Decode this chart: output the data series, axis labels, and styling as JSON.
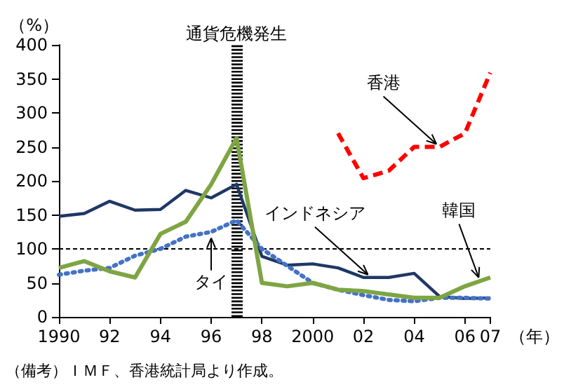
{
  "chart_data": {
    "type": "line",
    "xlabel": "（年）",
    "ylabel": "（%）",
    "x": [
      1990,
      1991,
      1992,
      1993,
      1994,
      1995,
      1996,
      1997,
      1998,
      1999,
      2000,
      2001,
      2002,
      2003,
      2004,
      2005,
      2006,
      2007
    ],
    "xlim": [
      1990,
      2007
    ],
    "xticks": [
      {
        "value": 1990,
        "label": "1990"
      },
      {
        "value": 1992,
        "label": "92"
      },
      {
        "value": 1994,
        "label": "94"
      },
      {
        "value": 1996,
        "label": "96"
      },
      {
        "value": 1998,
        "label": "98"
      },
      {
        "value": 2000,
        "label": "2000"
      },
      {
        "value": 2002,
        "label": "02"
      },
      {
        "value": 2004,
        "label": "04"
      },
      {
        "value": 2006,
        "label": "06"
      },
      {
        "value": 2007,
        "label": "07"
      }
    ],
    "ylim": [
      0,
      400
    ],
    "yticks": [
      0,
      50,
      100,
      150,
      200,
      250,
      300,
      350,
      400
    ],
    "grid": false,
    "marker": "none",
    "series": [
      {
        "color": "#1f3864",
        "line_style": "solid",
        "values": [
          148,
          152,
          170,
          157,
          158,
          186,
          175,
          195,
          89,
          76,
          78,
          72,
          58,
          58,
          64,
          30,
          27,
          28
        ]
      },
      {
        "color": "#4472c4",
        "line_style": "dotted",
        "values": [
          62,
          68,
          72,
          90,
          100,
          118,
          125,
          142,
          100,
          75,
          50,
          40,
          32,
          25,
          23,
          28,
          28,
          27
        ]
      },
      {
        "color": "#7ea543",
        "line_style": "solid",
        "values": [
          72,
          82,
          67,
          58,
          122,
          140,
          195,
          263,
          50,
          45,
          50,
          40,
          38,
          33,
          28,
          28,
          45,
          58
        ]
      },
      {
        "color": "#ff0000",
        "line_style": "dashed",
        "values": [
          null,
          null,
          null,
          null,
          null,
          null,
          null,
          null,
          null,
          null,
          null,
          270,
          204,
          215,
          250,
          250,
          270,
          359
        ]
      }
    ],
    "ref_lines": [
      {
        "axis": "x",
        "value": 1997,
        "label": "通貨危機発生",
        "color": "#000000",
        "line_style": "dashed"
      },
      {
        "axis": "y",
        "value": 100,
        "color": "#000000",
        "line_style": "dashed"
      }
    ],
    "annotations": [
      {
        "text": "インドネシア",
        "x": 2002.3,
        "y": 58
      },
      {
        "text": "タイ",
        "x": 1996,
        "y": 122
      },
      {
        "text": "韓国",
        "x": 2006.6,
        "y": 52
      },
      {
        "text": "香港",
        "x": 2005,
        "y": 250
      },
      "（備考）ＩＭＦ、香港統計局より作成。"
    ]
  }
}
